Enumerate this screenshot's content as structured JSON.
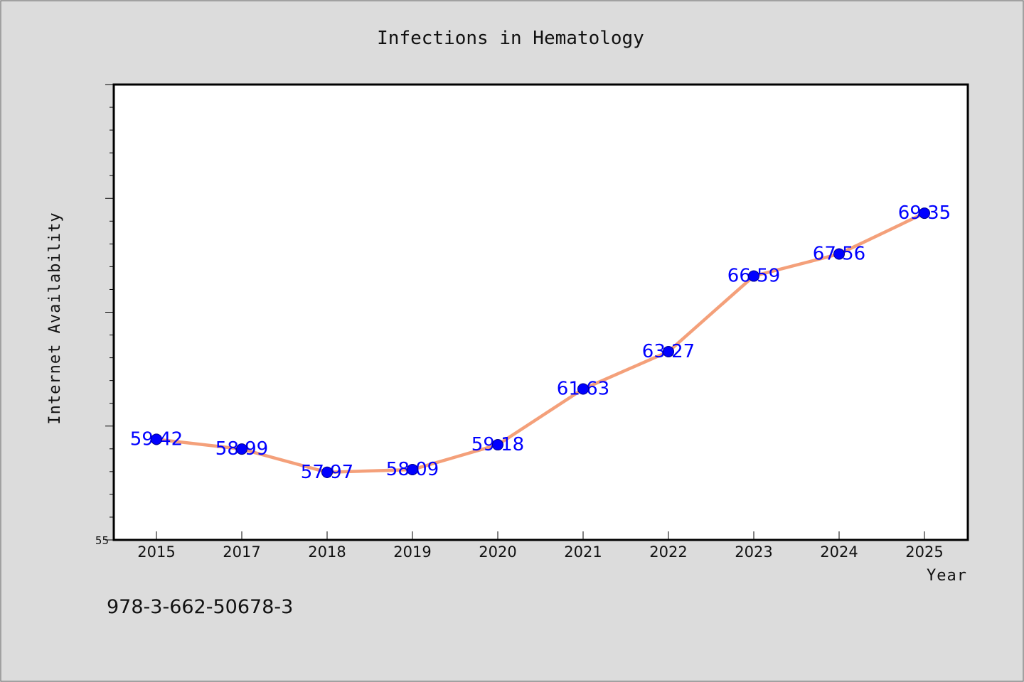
{
  "chart_data": {
    "type": "line",
    "title": "Infections in Hematology",
    "xlabel": "Year",
    "ylabel": "Internet Availability",
    "categories": [
      "2015",
      "2017",
      "2018",
      "2019",
      "2020",
      "2021",
      "2022",
      "2023",
      "2024",
      "2025"
    ],
    "series": [
      {
        "values": [
          59.42,
          58.99,
          57.97,
          58.09,
          59.18,
          61.63,
          63.27,
          66.59,
          67.56,
          69.35
        ],
        "labels": [
          "59.42",
          "58.99",
          "57.97",
          "58.09",
          "59.18",
          "61.63",
          "63.27",
          "66.59",
          "67.56",
          "69.35"
        ],
        "line_color": "#f4a07a",
        "marker_color": "#0000ff"
      }
    ],
    "ylim": [
      55,
      75
    ],
    "ytick_labels": [
      "55"
    ],
    "grid": false,
    "background": "#dcdcdc",
    "plot_background": "#ffffff",
    "label_color": "#0000ff"
  },
  "footnote": "978-3-662-50678-3"
}
